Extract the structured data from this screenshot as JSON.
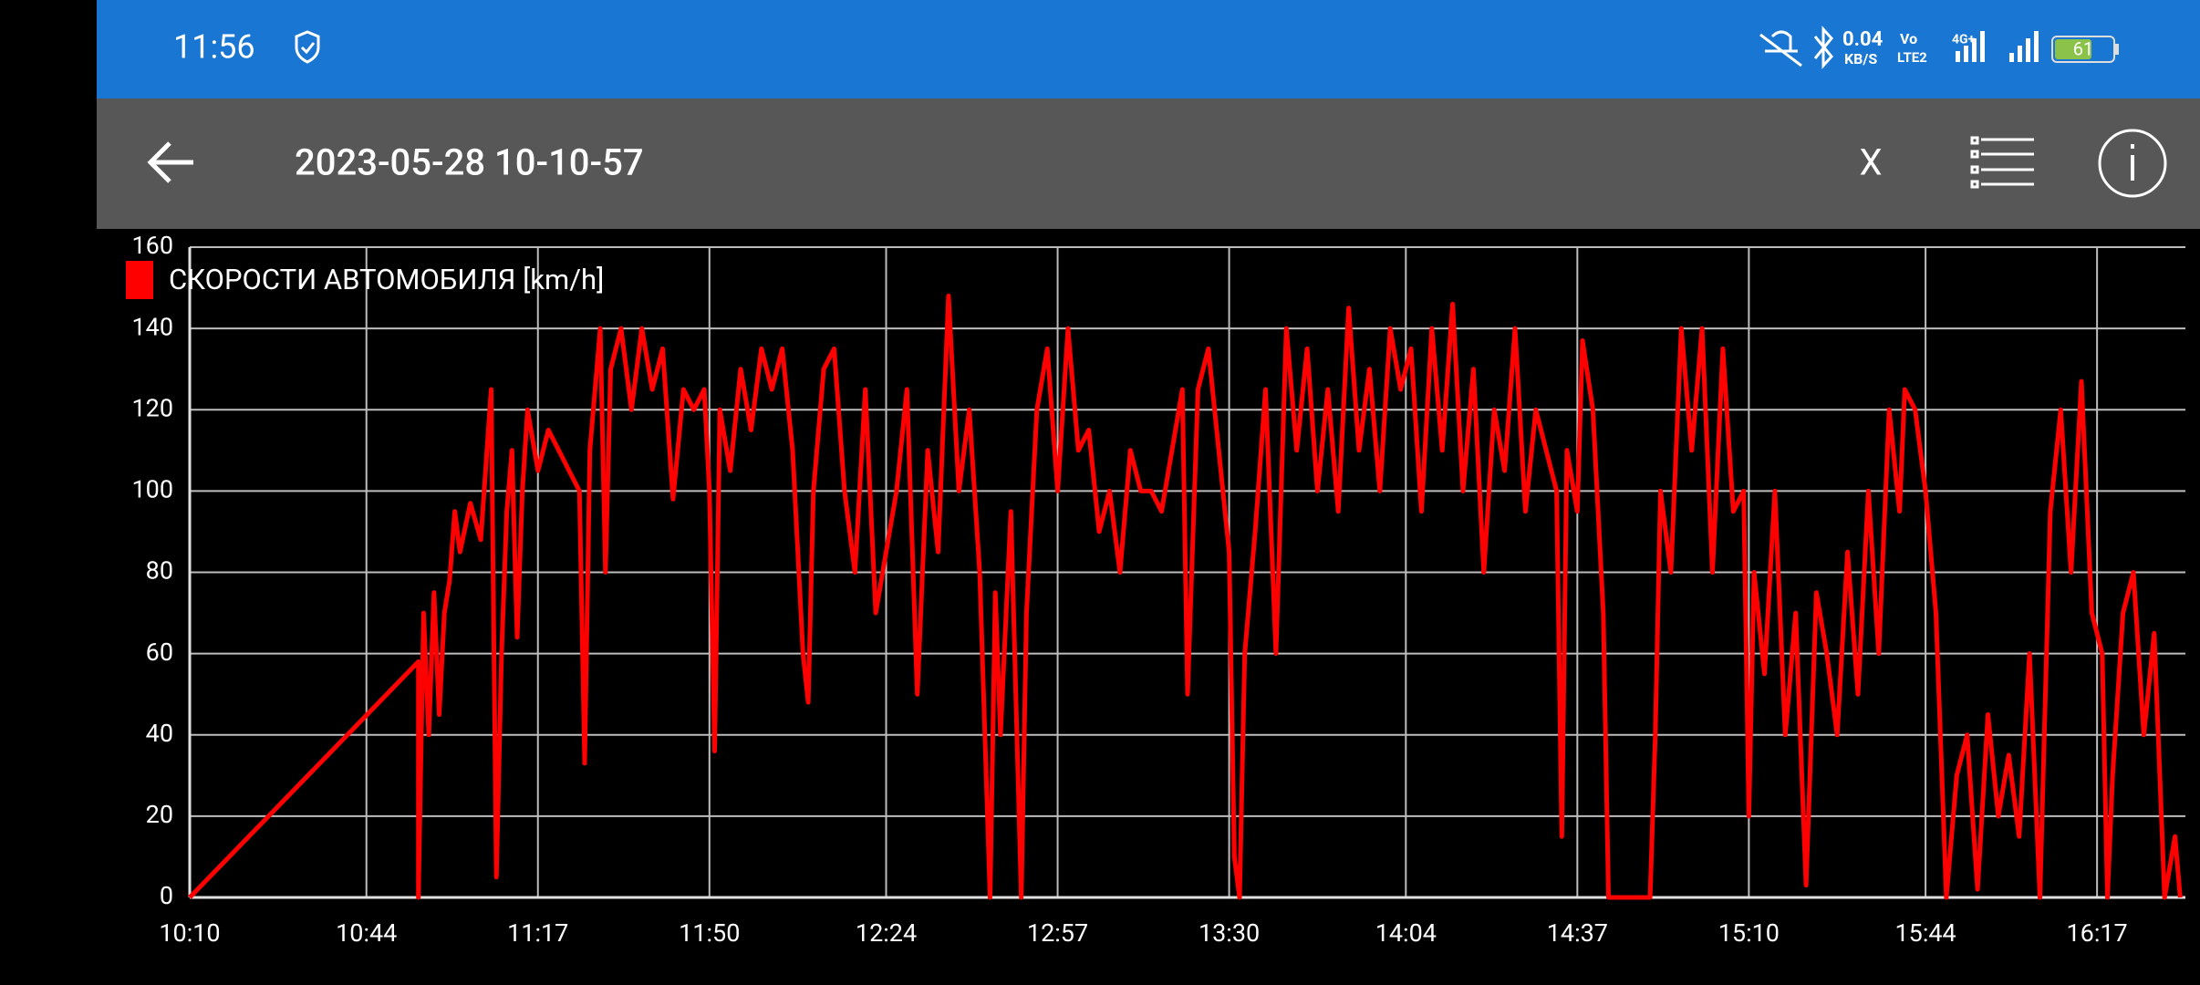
{
  "status_bar": {
    "time": "11:56",
    "net_speed": "0.04",
    "net_unit": "KB/S",
    "volte": "Vo",
    "lte": "LTE2",
    "net_type": "4G+",
    "battery": "61"
  },
  "toolbar": {
    "title": "2023-05-28 10-10-57",
    "close": "X"
  },
  "chart_data": {
    "type": "line",
    "x": [
      "10:10",
      "10:54",
      "10:54",
      "10:55",
      "10:56",
      "10:57",
      "10:58",
      "10:59",
      "11:00",
      "11:01",
      "11:02",
      "11:04",
      "11:06",
      "11:08",
      "11:09",
      "11:10",
      "11:11",
      "11:12",
      "11:13",
      "11:14",
      "11:15",
      "11:17",
      "11:19",
      "11:21",
      "11:23",
      "11:25",
      "11:26",
      "11:27",
      "11:29",
      "11:30",
      "11:31",
      "11:33",
      "11:35",
      "11:37",
      "11:39",
      "11:41",
      "11:43",
      "11:45",
      "11:47",
      "11:49",
      "11:50",
      "11:51",
      "11:52",
      "11:54",
      "11:56",
      "11:58",
      "12:00",
      "12:02",
      "12:04",
      "12:06",
      "12:08",
      "12:09",
      "12:10",
      "12:12",
      "12:14",
      "12:16",
      "12:18",
      "12:20",
      "12:22",
      "12:24",
      "12:26",
      "12:28",
      "12:30",
      "12:32",
      "12:34",
      "12:36",
      "12:38",
      "12:40",
      "12:42",
      "12:44",
      "12:45",
      "12:46",
      "12:48",
      "12:50",
      "12:51",
      "12:53",
      "12:55",
      "12:57",
      "12:59",
      "13:01",
      "13:03",
      "13:05",
      "13:07",
      "13:09",
      "13:11",
      "13:13",
      "13:15",
      "13:17",
      "13:19",
      "13:21",
      "13:22",
      "13:24",
      "13:26",
      "13:28",
      "13:30",
      "13:31",
      "13:32",
      "13:33",
      "13:35",
      "13:37",
      "13:39",
      "13:41",
      "13:43",
      "13:45",
      "13:47",
      "13:49",
      "13:51",
      "13:53",
      "13:55",
      "13:57",
      "13:59",
      "14:01",
      "14:03",
      "14:05",
      "14:07",
      "14:09",
      "14:11",
      "14:13",
      "14:15",
      "14:17",
      "14:19",
      "14:21",
      "14:23",
      "14:25",
      "14:27",
      "14:29",
      "14:31",
      "14:33",
      "14:34",
      "14:35",
      "14:37",
      "14:38",
      "14:40",
      "14:42",
      "14:43",
      "14:46",
      "14:49",
      "14:51",
      "14:52",
      "14:53",
      "14:55",
      "14:57",
      "14:59",
      "15:01",
      "15:03",
      "15:05",
      "15:07",
      "15:09",
      "15:10",
      "15:11",
      "15:13",
      "15:15",
      "15:17",
      "15:19",
      "15:21",
      "15:23",
      "15:25",
      "15:27",
      "15:29",
      "15:31",
      "15:33",
      "15:35",
      "15:37",
      "15:39",
      "15:40",
      "15:42",
      "15:44",
      "15:46",
      "15:48",
      "15:50",
      "15:52",
      "15:54",
      "15:56",
      "15:58",
      "16:00",
      "16:02",
      "16:04",
      "16:06",
      "16:08",
      "16:10",
      "16:12",
      "16:14",
      "16:16",
      "16:18",
      "16:19",
      "16:20",
      "16:22",
      "16:24",
      "16:26",
      "16:28",
      "16:30",
      "16:32",
      "16:33"
    ],
    "series": [
      {
        "name": "СКОРОСТИ АВТОМОБИЛЯ [km/h]",
        "color": "#ff0000",
        "values": [
          0,
          58,
          0,
          70,
          40,
          75,
          45,
          70,
          78,
          95,
          85,
          97,
          88,
          125,
          5,
          60,
          95,
          110,
          64,
          100,
          120,
          105,
          115,
          110,
          105,
          100,
          33,
          110,
          140,
          80,
          130,
          140,
          120,
          140,
          125,
          135,
          98,
          125,
          120,
          125,
          100,
          36,
          120,
          105,
          130,
          115,
          135,
          125,
          135,
          110,
          60,
          48,
          100,
          130,
          135,
          100,
          80,
          125,
          70,
          85,
          100,
          125,
          50,
          110,
          85,
          148,
          100,
          120,
          80,
          0,
          75,
          40,
          95,
          0,
          70,
          120,
          135,
          100,
          140,
          110,
          115,
          90,
          100,
          80,
          110,
          100,
          100,
          95,
          110,
          125,
          50,
          125,
          135,
          110,
          85,
          10,
          0,
          60,
          90,
          125,
          60,
          140,
          110,
          135,
          100,
          125,
          95,
          145,
          110,
          130,
          100,
          140,
          125,
          135,
          95,
          140,
          110,
          146,
          100,
          130,
          80,
          120,
          105,
          140,
          95,
          120,
          110,
          100,
          15,
          110,
          95,
          137,
          120,
          70,
          0,
          0,
          0,
          0,
          40,
          100,
          80,
          140,
          110,
          140,
          80,
          135,
          95,
          100,
          20,
          80,
          55,
          100,
          40,
          70,
          3,
          75,
          60,
          40,
          85,
          50,
          100,
          60,
          120,
          95,
          125,
          120,
          100,
          70,
          0,
          30,
          40,
          2,
          45,
          20,
          35,
          15,
          60,
          0,
          95,
          120,
          80,
          127,
          70,
          60,
          0,
          30,
          70,
          80,
          40,
          65,
          0,
          15,
          0
        ]
      }
    ],
    "xlim": [
      "10:10",
      "16:34"
    ],
    "xticks": [
      "10:10",
      "10:44",
      "11:17",
      "11:50",
      "12:24",
      "12:57",
      "13:30",
      "14:04",
      "14:37",
      "15:10",
      "15:44",
      "16:17"
    ],
    "ylim": [
      0,
      160
    ],
    "yticks": [
      0,
      20,
      40,
      60,
      80,
      100,
      120,
      140,
      160
    ],
    "grid": true
  }
}
